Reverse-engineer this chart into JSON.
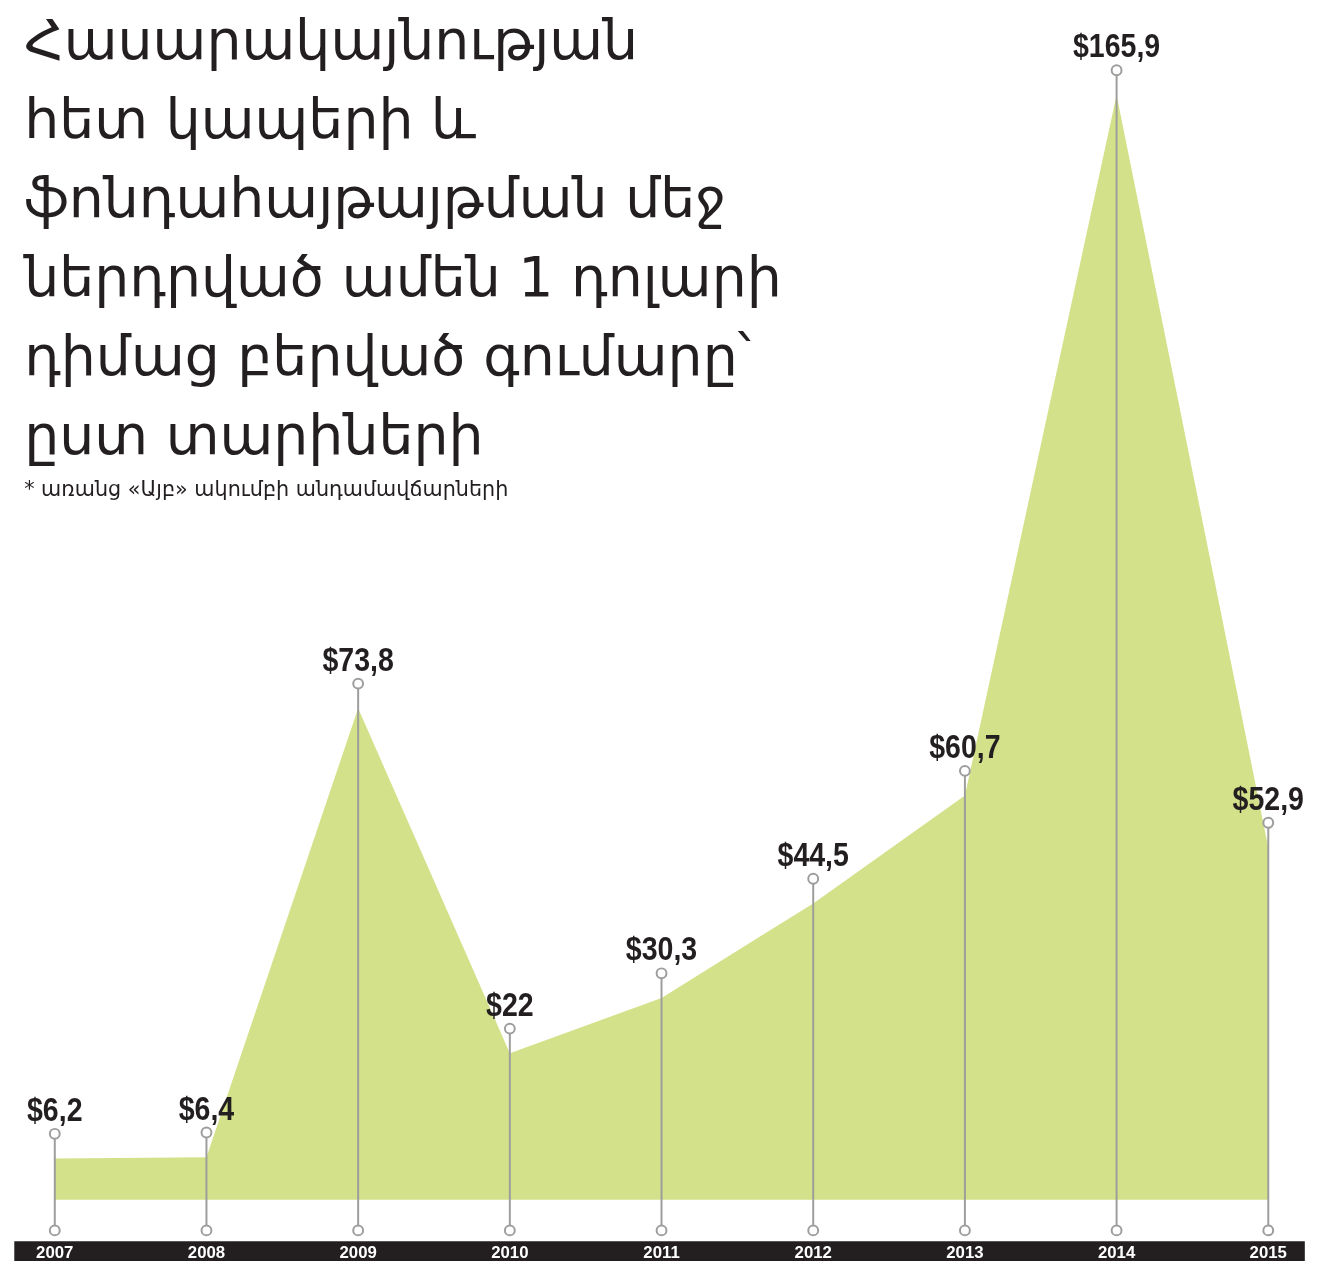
{
  "chart_data": {
    "type": "area",
    "title": "Հասարակայնության\nհետ կապերի և\nֆոնդահայթայթման մեջ\nներդրված ամեն 1 դոլարի\nդիմաց բերված գումարը՝\nըստ տարիների",
    "subtitle": "* առանց «Այբ» ակումբի անդամավճարների",
    "categories": [
      "2007",
      "2008",
      "2009",
      "2010",
      "2011",
      "2012",
      "2013",
      "2014",
      "2015"
    ],
    "values": [
      6.2,
      6.4,
      73.8,
      22,
      30.3,
      44.5,
      60.7,
      165.9,
      52.9
    ],
    "value_labels": [
      "$6,2",
      "$6,4",
      "$73,8",
      "$22",
      "$30,3",
      "$44,5",
      "$60,7",
      "$165,9",
      "$52,9"
    ],
    "color": "#d3e28a",
    "grid": "x"
  }
}
